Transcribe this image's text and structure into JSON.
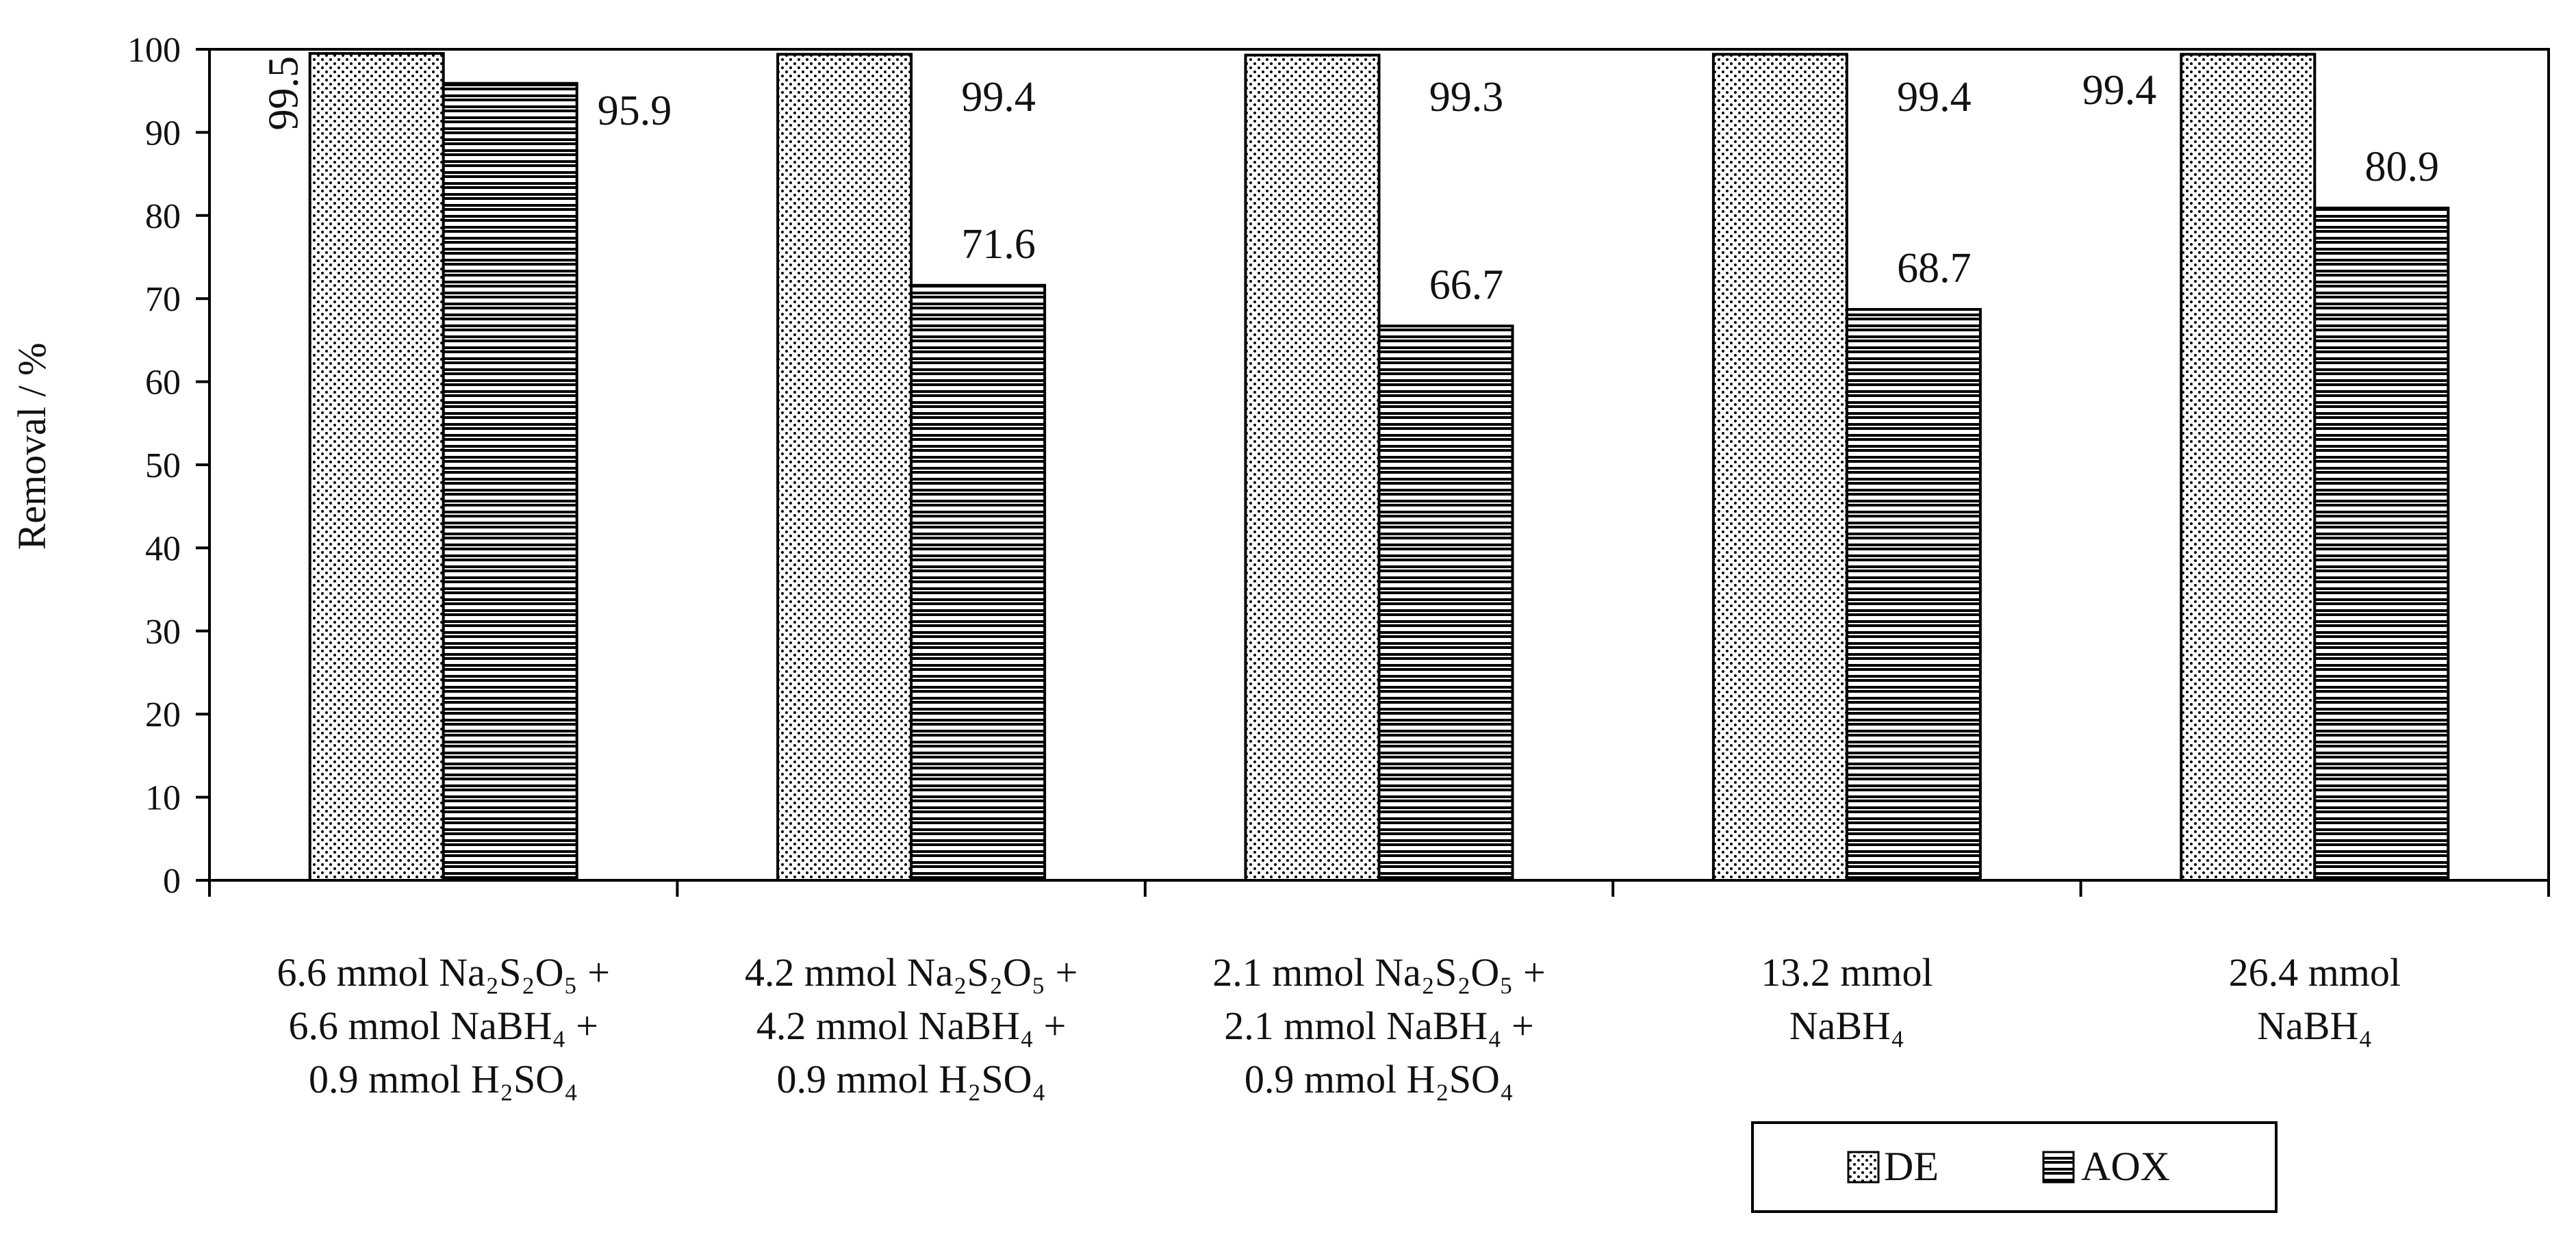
{
  "chart_data": {
    "type": "bar",
    "title": "",
    "xlabel": "",
    "ylabel": "Removal / %",
    "ylim": [
      0,
      100
    ],
    "yticks": [
      "0",
      "10",
      "20",
      "30",
      "40",
      "50",
      "60",
      "70",
      "80",
      "90",
      "100"
    ],
    "grid": false,
    "legend_position": "bottom-right",
    "categories": [
      [
        "6.6 mmol Na₂S₂O₅ +",
        "6.6 mmol NaBH₄ +",
        "0.9 mmol H₂SO₄"
      ],
      [
        "4.2 mmol Na₂S₂O₅ +",
        "4.2 mmol NaBH₄ +",
        "0.9 mmol H₂SO₄"
      ],
      [
        "2.1 mmol Na₂S₂O₅ +",
        "2.1 mmol NaBH₄ +",
        "0.9 mmol H₂SO₄"
      ],
      [
        "13.2 mmol",
        "NaBH₄"
      ],
      [
        "26.4 mmol",
        "NaBH₄"
      ]
    ],
    "series": [
      {
        "name": "DE",
        "pattern": "dots",
        "values": [
          99.5,
          99.4,
          99.3,
          99.4,
          99.4
        ],
        "labels": [
          "99.5",
          "99.4",
          "99.3",
          "99.4",
          "99.4"
        ]
      },
      {
        "name": "AOX",
        "pattern": "hlines",
        "values": [
          95.9,
          71.6,
          66.7,
          68.7,
          80.9
        ],
        "labels": [
          "95.9",
          "71.6",
          "66.7",
          "68.7",
          "80.9"
        ]
      }
    ]
  }
}
